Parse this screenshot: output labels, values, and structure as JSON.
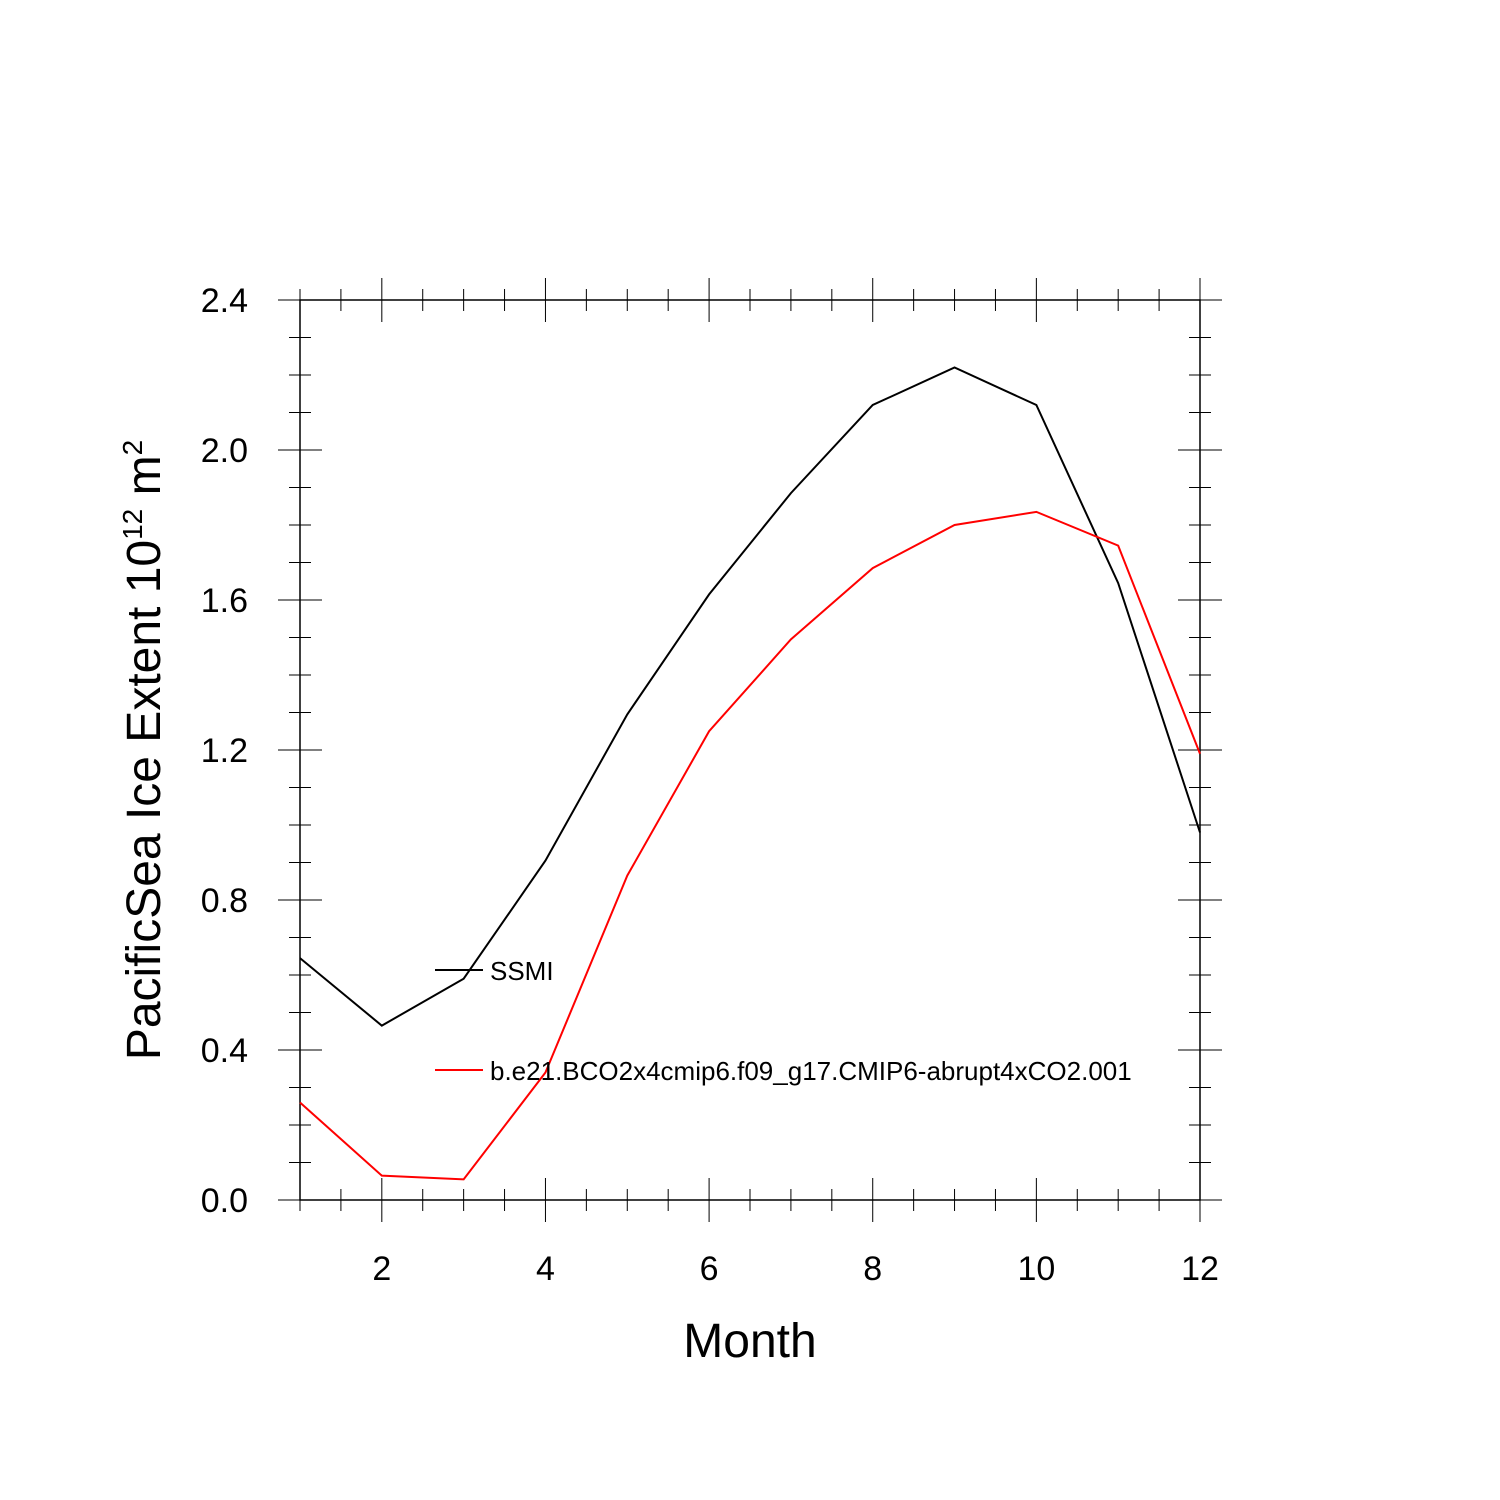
{
  "chart_data": {
    "type": "line",
    "xlabel": "Month",
    "ylabel": {
      "prefix": "PacificSea Ice Extent 10",
      "exponent": "12",
      "unit": " m",
      "unit_exponent": "2"
    },
    "xlim": [
      1,
      12
    ],
    "ylim": [
      0.0,
      2.4
    ],
    "xticks": [
      2,
      4,
      6,
      8,
      10,
      12
    ],
    "xtick_labels": [
      "2",
      "4",
      "6",
      "8",
      "10",
      "12"
    ],
    "x_minor_step": 0.5,
    "yticks": [
      0.0,
      0.4,
      0.8,
      1.2,
      1.6,
      2.0,
      2.4
    ],
    "ytick_labels": [
      "0.0",
      "0.4",
      "0.8",
      "1.2",
      "1.6",
      "2.0",
      "2.4"
    ],
    "y_minor_step": 0.1,
    "grid": false,
    "legend_placement": "inside, center-left",
    "x": [
      1,
      2,
      3,
      4,
      5,
      6,
      7,
      8,
      9,
      10,
      11,
      12
    ],
    "series": [
      {
        "name": "SSMI",
        "color": "#000000",
        "values": [
          0.645,
          0.465,
          0.59,
          0.905,
          1.295,
          1.615,
          1.885,
          2.12,
          2.22,
          2.12,
          1.645,
          0.98
        ]
      },
      {
        "name": "b.e21.BCO2x4cmip6.f09_g17.CMIP6-abrupt4xCO2.001",
        "color": "#ff0000",
        "values": [
          0.26,
          0.065,
          0.055,
          0.34,
          0.865,
          1.25,
          1.495,
          1.685,
          1.8,
          1.835,
          1.745,
          1.19
        ]
      }
    ]
  }
}
